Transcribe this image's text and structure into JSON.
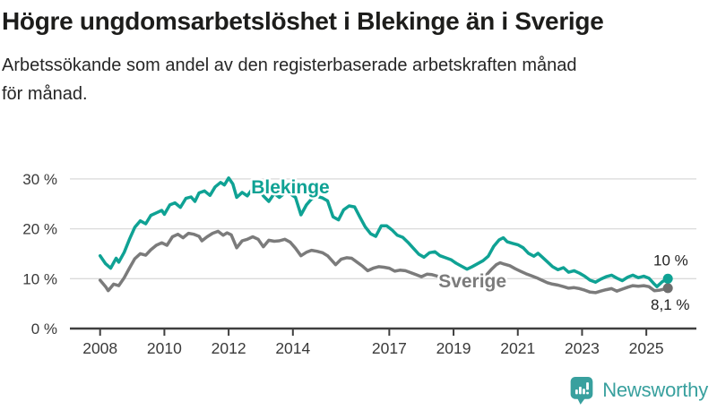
{
  "header": {
    "title": "Högre ungdomsarbetslöshet i Blekinge än i Sverige",
    "subtitle": "Arbetssökande som andel av den registerbaserade arbetskraften månad för månad."
  },
  "footer": {
    "brand": "Newsworthy",
    "logo_icon": "bar-chart-speech-bubble-icon"
  },
  "colors": {
    "blekinge": "#0FA294",
    "sverige": "#7B7B7B",
    "sverige_dot": "#6E6E6E",
    "grid": "#DADADA",
    "axis": "#3F3F3F",
    "tick_text": "#3A3A3A",
    "annotation_text": "#222222",
    "brand_teal": "#38A09E",
    "title_text": "#1D1D1B"
  },
  "chart_data": {
    "type": "line",
    "unit": "%",
    "grid": true,
    "legend_position": "inline-labels",
    "x_axis": {
      "ticks": [
        2008,
        2010,
        2012,
        2014,
        2017,
        2019,
        2021,
        2023,
        2025
      ],
      "labels": [
        "2008",
        "2010",
        "2012",
        "2014",
        "2017",
        "2019",
        "2021",
        "2023",
        "2025"
      ],
      "range": [
        2007.05,
        2026.55
      ]
    },
    "y_axis": {
      "ticks": [
        0,
        10,
        20,
        30
      ],
      "labels": [
        "0 %",
        "10 %",
        "20 %",
        "30 %"
      ],
      "range": [
        0,
        33
      ]
    },
    "series": [
      {
        "name": "Sverige",
        "color": "#7B7B7B",
        "dot_color": "#6E6E6E",
        "end_label": "8,1 %",
        "end_value": 8.1,
        "label_at": [
          2018.53,
          8.26
        ],
        "end_label_at": [
          2026.35,
          3.8
        ],
        "points": [
          [
            2008.0,
            9.7
          ],
          [
            2008.17,
            8.4
          ],
          [
            2008.25,
            7.6
          ],
          [
            2008.42,
            8.9
          ],
          [
            2008.58,
            8.6
          ],
          [
            2008.75,
            10.2
          ],
          [
            2008.92,
            12.2
          ],
          [
            2009.08,
            14.0
          ],
          [
            2009.25,
            15.0
          ],
          [
            2009.42,
            14.7
          ],
          [
            2009.58,
            15.8
          ],
          [
            2009.75,
            16.7
          ],
          [
            2009.92,
            17.2
          ],
          [
            2010.08,
            16.7
          ],
          [
            2010.25,
            18.4
          ],
          [
            2010.42,
            18.9
          ],
          [
            2010.58,
            18.2
          ],
          [
            2010.75,
            19.1
          ],
          [
            2010.92,
            18.9
          ],
          [
            2011.08,
            18.5
          ],
          [
            2011.17,
            17.6
          ],
          [
            2011.33,
            18.4
          ],
          [
            2011.5,
            19.1
          ],
          [
            2011.67,
            19.5
          ],
          [
            2011.83,
            18.7
          ],
          [
            2011.95,
            19.2
          ],
          [
            2012.08,
            18.8
          ],
          [
            2012.25,
            16.2
          ],
          [
            2012.42,
            17.6
          ],
          [
            2012.58,
            17.9
          ],
          [
            2012.75,
            18.4
          ],
          [
            2012.92,
            17.9
          ],
          [
            2013.08,
            16.4
          ],
          [
            2013.25,
            17.7
          ],
          [
            2013.42,
            17.5
          ],
          [
            2013.58,
            17.6
          ],
          [
            2013.75,
            17.9
          ],
          [
            2013.92,
            17.3
          ],
          [
            2014.08,
            16.1
          ],
          [
            2014.25,
            14.6
          ],
          [
            2014.42,
            15.3
          ],
          [
            2014.58,
            15.7
          ],
          [
            2014.75,
            15.5
          ],
          [
            2014.92,
            15.2
          ],
          [
            2015.08,
            14.6
          ],
          [
            2015.25,
            13.4
          ],
          [
            2015.33,
            12.8
          ],
          [
            2015.5,
            13.9
          ],
          [
            2015.67,
            14.2
          ],
          [
            2015.83,
            14.1
          ],
          [
            2016.0,
            13.3
          ],
          [
            2016.17,
            12.5
          ],
          [
            2016.33,
            11.6
          ],
          [
            2016.5,
            12.1
          ],
          [
            2016.67,
            12.4
          ],
          [
            2016.83,
            12.3
          ],
          [
            2017.0,
            12.1
          ],
          [
            2017.17,
            11.5
          ],
          [
            2017.33,
            11.7
          ],
          [
            2017.5,
            11.6
          ],
          [
            2017.67,
            11.2
          ],
          [
            2017.83,
            10.8
          ],
          [
            2018.0,
            10.4
          ],
          [
            2018.17,
            10.9
          ],
          [
            2018.33,
            10.8
          ],
          [
            2018.5,
            10.5
          ],
          [
            2018.67,
            10.2
          ],
          [
            2018.83,
            10.1
          ],
          [
            2019.0,
            9.6
          ],
          [
            2019.17,
            9.2
          ],
          [
            2019.33,
            8.9
          ],
          [
            2019.5,
            9.1
          ],
          [
            2019.67,
            9.4
          ],
          [
            2019.83,
            9.8
          ],
          [
            2020.0,
            10.6
          ],
          [
            2020.17,
            11.8
          ],
          [
            2020.33,
            12.8
          ],
          [
            2020.45,
            13.2
          ],
          [
            2020.58,
            12.9
          ],
          [
            2020.75,
            12.6
          ],
          [
            2020.92,
            12.0
          ],
          [
            2021.08,
            11.5
          ],
          [
            2021.25,
            11.0
          ],
          [
            2021.42,
            10.6
          ],
          [
            2021.58,
            10.2
          ],
          [
            2021.75,
            9.7
          ],
          [
            2021.92,
            9.2
          ],
          [
            2022.08,
            8.9
          ],
          [
            2022.25,
            8.7
          ],
          [
            2022.42,
            8.4
          ],
          [
            2022.58,
            8.1
          ],
          [
            2022.75,
            8.2
          ],
          [
            2022.92,
            8.0
          ],
          [
            2023.08,
            7.7
          ],
          [
            2023.25,
            7.3
          ],
          [
            2023.42,
            7.2
          ],
          [
            2023.58,
            7.5
          ],
          [
            2023.75,
            7.8
          ],
          [
            2023.92,
            8.0
          ],
          [
            2024.08,
            7.5
          ],
          [
            2024.25,
            7.9
          ],
          [
            2024.42,
            8.3
          ],
          [
            2024.58,
            8.6
          ],
          [
            2024.75,
            8.5
          ],
          [
            2024.92,
            8.6
          ],
          [
            2025.08,
            8.4
          ],
          [
            2025.25,
            7.6
          ],
          [
            2025.42,
            7.7
          ],
          [
            2025.55,
            7.9
          ],
          [
            2025.67,
            8.1
          ]
        ]
      },
      {
        "name": "Blekinge",
        "color": "#0FA294",
        "dot_color": "#0FA294",
        "end_label": "10 %",
        "end_value": 10.0,
        "label_at": [
          2012.7,
          27.1
        ],
        "end_label_at": [
          2026.3,
          12.7
        ],
        "points": [
          [
            2008.0,
            14.6
          ],
          [
            2008.17,
            13.0
          ],
          [
            2008.33,
            12.1
          ],
          [
            2008.42,
            13.2
          ],
          [
            2008.5,
            14.1
          ],
          [
            2008.58,
            13.3
          ],
          [
            2008.75,
            15.3
          ],
          [
            2008.92,
            18.0
          ],
          [
            2009.08,
            20.3
          ],
          [
            2009.25,
            21.6
          ],
          [
            2009.42,
            21.0
          ],
          [
            2009.58,
            22.7
          ],
          [
            2009.75,
            23.2
          ],
          [
            2009.92,
            23.7
          ],
          [
            2010.0,
            22.9
          ],
          [
            2010.17,
            24.8
          ],
          [
            2010.33,
            25.2
          ],
          [
            2010.5,
            24.3
          ],
          [
            2010.67,
            26.1
          ],
          [
            2010.83,
            26.4
          ],
          [
            2010.95,
            25.5
          ],
          [
            2011.08,
            27.2
          ],
          [
            2011.25,
            27.6
          ],
          [
            2011.42,
            26.7
          ],
          [
            2011.58,
            28.4
          ],
          [
            2011.75,
            29.3
          ],
          [
            2011.87,
            28.8
          ],
          [
            2012.0,
            30.2
          ],
          [
            2012.13,
            29.0
          ],
          [
            2012.25,
            26.3
          ],
          [
            2012.42,
            27.3
          ],
          [
            2012.58,
            26.6
          ],
          [
            2012.75,
            28.1
          ],
          [
            2012.92,
            28.4
          ],
          [
            2013.08,
            26.6
          ],
          [
            2013.25,
            25.5
          ],
          [
            2013.42,
            27.1
          ],
          [
            2013.58,
            26.3
          ],
          [
            2013.75,
            27.2
          ],
          [
            2013.92,
            27.0
          ],
          [
            2014.08,
            26.3
          ],
          [
            2014.25,
            22.8
          ],
          [
            2014.42,
            24.8
          ],
          [
            2014.58,
            26.0
          ],
          [
            2014.75,
            26.5
          ],
          [
            2014.92,
            26.2
          ],
          [
            2015.08,
            25.6
          ],
          [
            2015.25,
            22.4
          ],
          [
            2015.42,
            21.8
          ],
          [
            2015.58,
            23.8
          ],
          [
            2015.75,
            24.6
          ],
          [
            2015.92,
            24.4
          ],
          [
            2016.08,
            22.4
          ],
          [
            2016.25,
            20.4
          ],
          [
            2016.42,
            19.0
          ],
          [
            2016.58,
            18.5
          ],
          [
            2016.75,
            20.6
          ],
          [
            2016.92,
            20.6
          ],
          [
            2017.08,
            19.8
          ],
          [
            2017.25,
            18.7
          ],
          [
            2017.42,
            18.3
          ],
          [
            2017.58,
            17.3
          ],
          [
            2017.75,
            16.1
          ],
          [
            2017.92,
            14.9
          ],
          [
            2018.08,
            14.3
          ],
          [
            2018.25,
            15.2
          ],
          [
            2018.42,
            15.4
          ],
          [
            2018.58,
            14.6
          ],
          [
            2018.75,
            14.2
          ],
          [
            2018.92,
            13.8
          ],
          [
            2019.08,
            13.1
          ],
          [
            2019.25,
            12.5
          ],
          [
            2019.42,
            11.9
          ],
          [
            2019.58,
            12.4
          ],
          [
            2019.75,
            13.0
          ],
          [
            2019.92,
            13.6
          ],
          [
            2020.08,
            14.5
          ],
          [
            2020.25,
            16.5
          ],
          [
            2020.42,
            17.8
          ],
          [
            2020.55,
            18.2
          ],
          [
            2020.67,
            17.4
          ],
          [
            2020.83,
            17.1
          ],
          [
            2021.0,
            16.8
          ],
          [
            2021.17,
            16.2
          ],
          [
            2021.33,
            15.1
          ],
          [
            2021.5,
            14.5
          ],
          [
            2021.63,
            15.1
          ],
          [
            2021.75,
            14.4
          ],
          [
            2021.92,
            13.4
          ],
          [
            2022.08,
            12.4
          ],
          [
            2022.25,
            11.8
          ],
          [
            2022.42,
            12.2
          ],
          [
            2022.58,
            11.3
          ],
          [
            2022.75,
            11.6
          ],
          [
            2022.92,
            11.1
          ],
          [
            2023.08,
            10.5
          ],
          [
            2023.25,
            9.7
          ],
          [
            2023.42,
            9.3
          ],
          [
            2023.58,
            9.9
          ],
          [
            2023.75,
            10.4
          ],
          [
            2023.92,
            10.7
          ],
          [
            2024.08,
            10.1
          ],
          [
            2024.25,
            9.6
          ],
          [
            2024.42,
            10.3
          ],
          [
            2024.58,
            10.7
          ],
          [
            2024.75,
            10.2
          ],
          [
            2024.92,
            10.5
          ],
          [
            2025.08,
            10.1
          ],
          [
            2025.25,
            8.9
          ],
          [
            2025.33,
            8.4
          ],
          [
            2025.5,
            9.4
          ],
          [
            2025.67,
            10.0
          ]
        ]
      }
    ]
  }
}
